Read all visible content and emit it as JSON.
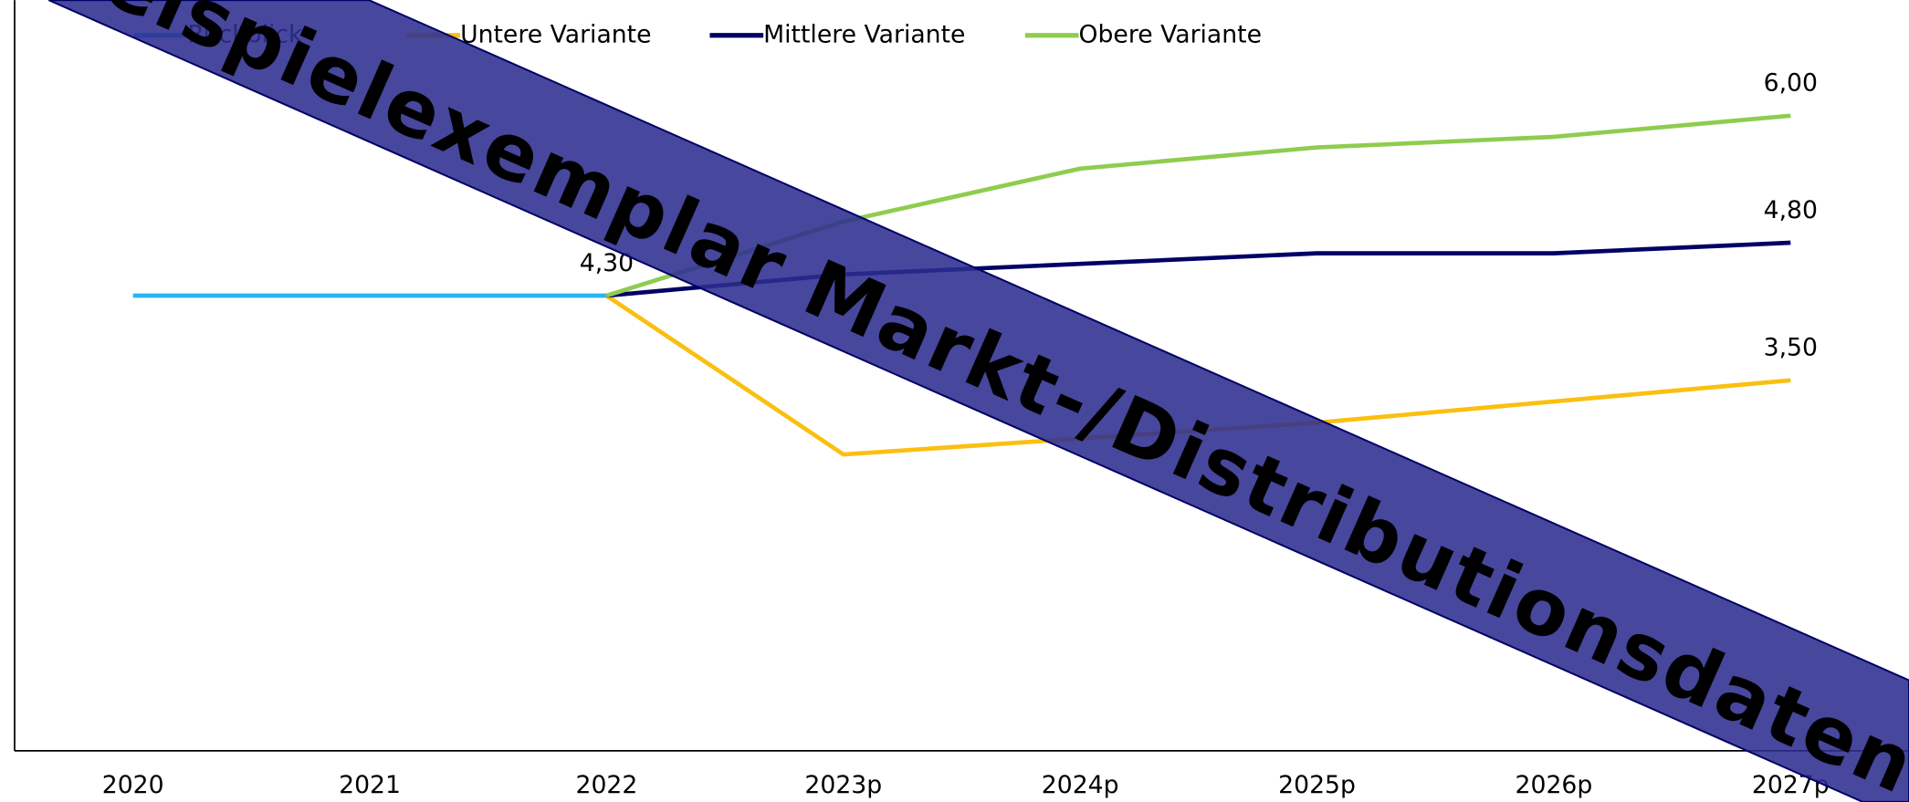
{
  "chart_data": {
    "type": "line",
    "categories": [
      "2020",
      "2021",
      "2022",
      "2023p",
      "2024p",
      "2025p",
      "2026p",
      "2027p"
    ],
    "series": [
      {
        "name": "Rückblick",
        "color": "#29b6f0",
        "values": [
          4.3,
          4.3,
          4.3,
          null,
          null,
          null,
          null,
          null
        ],
        "value_labels": [
          null,
          null,
          null,
          null,
          null,
          null,
          null,
          null
        ]
      },
      {
        "name": "Untere Variante",
        "color": "#fbbf10",
        "values": [
          null,
          null,
          4.3,
          2.8,
          2.95,
          3.1,
          3.3,
          3.5
        ],
        "value_labels": [
          null,
          null,
          null,
          null,
          null,
          null,
          null,
          "3,50"
        ]
      },
      {
        "name": "Mittlere Variante",
        "color": "#000066",
        "values": [
          null,
          null,
          4.3,
          4.5,
          4.6,
          4.7,
          4.7,
          4.8
        ],
        "value_labels": [
          null,
          null,
          "4,30",
          null,
          null,
          null,
          null,
          "4,80"
        ]
      },
      {
        "name": "Obere Variante",
        "color": "#8fcc4f",
        "values": [
          null,
          null,
          4.3,
          5.0,
          5.5,
          5.7,
          5.8,
          6.0
        ],
        "value_labels": [
          null,
          null,
          null,
          null,
          null,
          null,
          null,
          "6,00"
        ]
      }
    ],
    "ylim": [
      0,
      7
    ],
    "watermark": "Beispielexemplar Markt-/Distributionsdaten"
  }
}
